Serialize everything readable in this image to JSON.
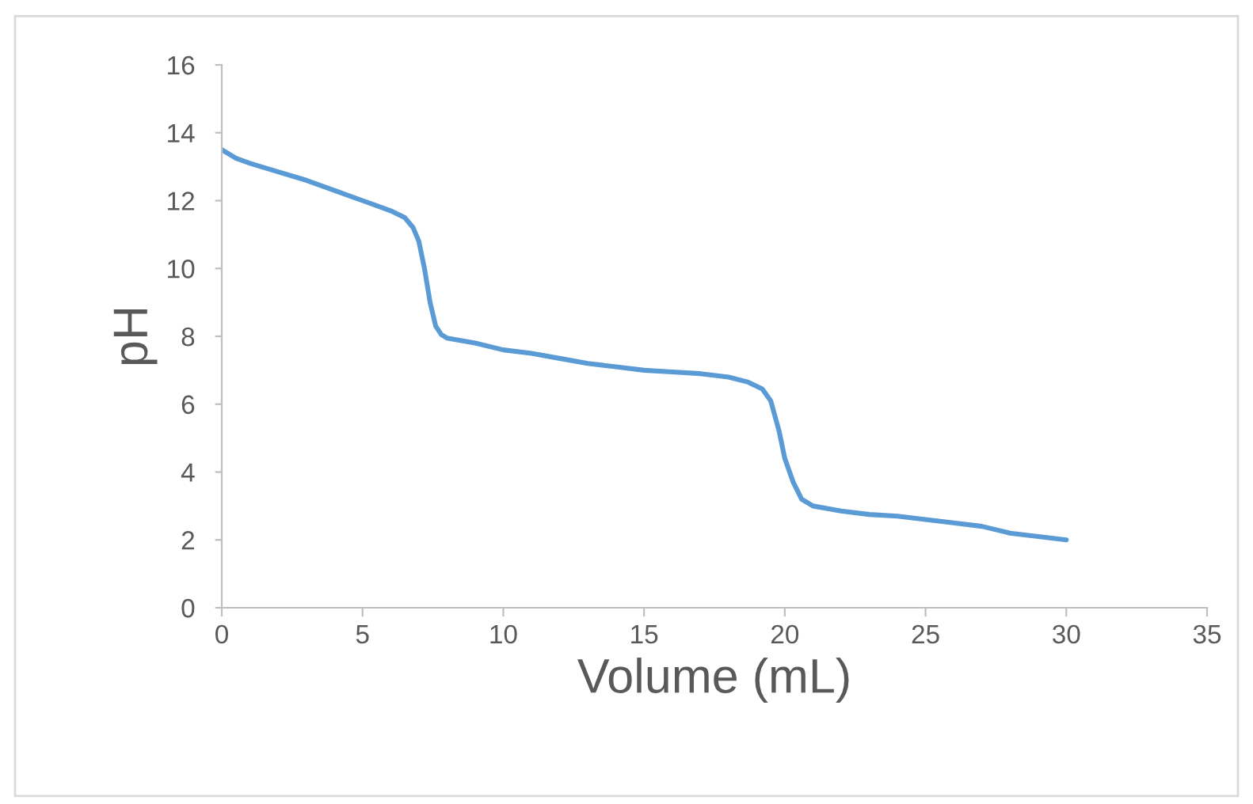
{
  "chart_data": {
    "type": "line",
    "xlabel": "Volume (mL)",
    "ylabel": "pH",
    "series": [
      {
        "color": "#5b9bd5",
        "x": [
          0,
          0.5,
          1,
          2,
          3,
          4,
          5,
          6,
          6.5,
          6.8,
          7,
          7.2,
          7.4,
          7.6,
          7.8,
          8,
          9,
          10,
          11,
          12,
          13,
          14,
          15,
          16,
          17,
          18,
          18.7,
          19.2,
          19.5,
          19.8,
          20,
          20.3,
          20.6,
          21,
          22,
          23,
          24,
          25,
          26,
          27,
          27.5,
          28,
          29,
          30
        ],
        "values": [
          13.5,
          13.25,
          13.1,
          12.85,
          12.6,
          12.3,
          12.0,
          11.7,
          11.5,
          11.2,
          10.8,
          10.0,
          9.0,
          8.3,
          8.05,
          7.95,
          7.8,
          7.6,
          7.5,
          7.35,
          7.2,
          7.1,
          7.0,
          6.95,
          6.9,
          6.8,
          6.65,
          6.45,
          6.1,
          5.2,
          4.4,
          3.7,
          3.2,
          3.0,
          2.85,
          2.75,
          2.7,
          2.6,
          2.5,
          2.4,
          2.3,
          2.2,
          2.1,
          2.0
        ]
      }
    ],
    "xlim": [
      0,
      35
    ],
    "xticks": [
      0,
      5,
      10,
      15,
      20,
      25,
      30,
      35
    ],
    "ylim": [
      0,
      16
    ],
    "yticks": [
      0,
      2,
      4,
      6,
      8,
      10,
      12,
      14,
      16
    ],
    "grid": false,
    "legend": false,
    "marker": "none",
    "line_style": "solid"
  }
}
